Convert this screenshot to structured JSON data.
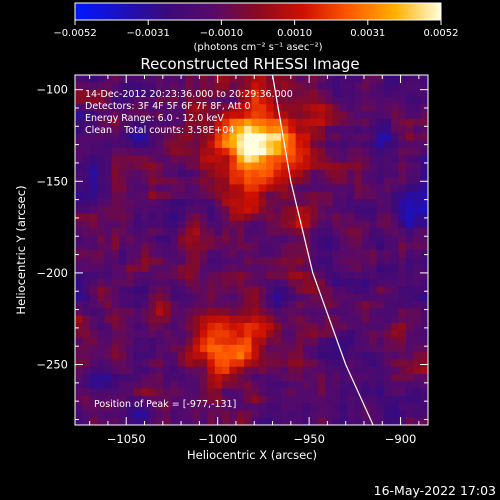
{
  "colorbar": {
    "ticks": [
      "−0.0052",
      "−0.0031",
      "−0.0010",
      "0.0010",
      "0.0031",
      "0.0052"
    ],
    "unit_label": "(photons cm⁻² s⁻¹ asec⁻²)",
    "stops": [
      "#0018ff",
      "#1c10c0",
      "#3a0a7a",
      "#560a6a",
      "#8a0a20",
      "#d01000",
      "#ff5a00",
      "#ffb000",
      "#ffffe0"
    ]
  },
  "chart_data": {
    "type": "heatmap",
    "title": "Reconstructed RHESSI Image",
    "xlabel": "Heliocentric X (arcsec)",
    "ylabel": "Heliocentric Y (arcsec)",
    "xlim": [
      -1078,
      -885
    ],
    "ylim": [
      -283,
      -92
    ],
    "xticks": [
      -1050,
      -1000,
      -950,
      -900
    ],
    "xtick_labels": [
      "−1050",
      "−1000",
      "−950",
      "−900"
    ],
    "yticks": [
      -100,
      -150,
      -200,
      -250
    ],
    "ytick_labels": [
      "−100",
      "−150",
      "−200",
      "−250"
    ],
    "zlim": [
      -0.0052,
      0.0052
    ],
    "sources": [
      {
        "x": -977,
        "y": -131,
        "peak": 0.0052
      },
      {
        "x": -995,
        "y": -240,
        "peak": 0.003
      }
    ],
    "limb_curve": [
      [
        -970,
        -92
      ],
      [
        -960,
        -150
      ],
      [
        -948,
        -200
      ],
      [
        -930,
        -250
      ],
      [
        -915,
        -283
      ]
    ],
    "info_lines": [
      "14-Dec-2012 20:23:36.000 to 20:29:36.000",
      "Detectors: 3F 4F 5F 6F 7F 8F, Att 0",
      "Energy Range: 6.0 - 12.0 keV",
      "Clean    Total counts: 3.58E+04"
    ],
    "peak_label": "Position of Peak = [-977,-131]"
  },
  "footer": {
    "date": "16-May-2022 17:03"
  }
}
